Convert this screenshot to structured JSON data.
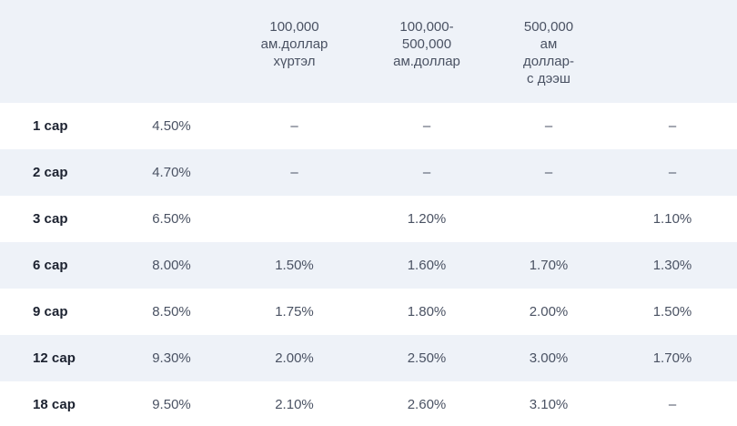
{
  "header": {
    "col0": "",
    "col1": "",
    "col2": "100,000\nам.доллар\nхүртэл",
    "col3": "100,000-\n500,000\nам.доллар",
    "col4": "500,000\nам\nдоллар-\nс дээш",
    "col5": ""
  },
  "rows": [
    {
      "term": "1 сар",
      "rate": "4.50%",
      "a": "–",
      "b": "–",
      "c": "–",
      "d": "–"
    },
    {
      "term": "2 сар",
      "rate": "4.70%",
      "a": "–",
      "b": "–",
      "c": "–",
      "d": "–"
    },
    {
      "term": "3 сар",
      "rate": "6.50%",
      "a": "",
      "b": "1.20%",
      "c": "",
      "d": "1.10%"
    },
    {
      "term": "6 сар",
      "rate": "8.00%",
      "a": "1.50%",
      "b": "1.60%",
      "c": "1.70%",
      "d": "1.30%"
    },
    {
      "term": "9 сар",
      "rate": "8.50%",
      "a": "1.75%",
      "b": "1.80%",
      "c": "2.00%",
      "d": "1.50%"
    },
    {
      "term": "12 сар",
      "rate": "9.30%",
      "a": "2.00%",
      "b": "2.50%",
      "c": "3.00%",
      "d": "1.70%"
    },
    {
      "term": "18 сар",
      "rate": "9.50%",
      "a": "2.10%",
      "b": "2.60%",
      "c": "3.10%",
      "d": "–"
    }
  ]
}
